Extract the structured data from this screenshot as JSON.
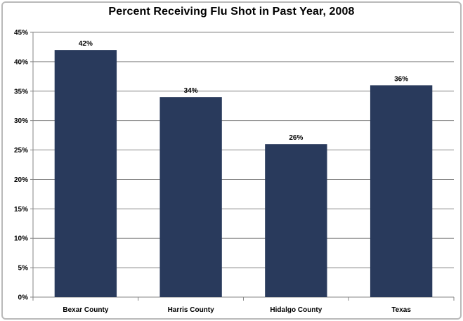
{
  "chart_data": {
    "type": "bar",
    "title": "Percent Receiving Flu Shot in Past Year, 2008",
    "xlabel": "",
    "ylabel": "",
    "categories": [
      "Bexar County",
      "Harris County",
      "Hidalgo County",
      "Texas"
    ],
    "values": [
      42,
      34,
      26,
      36
    ],
    "data_labels": [
      "42%",
      "34%",
      "26%",
      "36%"
    ],
    "ylim": [
      0,
      45
    ],
    "yticks": [
      0,
      5,
      10,
      15,
      20,
      25,
      30,
      35,
      40,
      45
    ],
    "ytick_labels": [
      "0%",
      "5%",
      "10%",
      "15%",
      "20%",
      "25%",
      "30%",
      "35%",
      "40%",
      "45%"
    ],
    "grid": true,
    "legend": "none",
    "bar_color": "#293a5c",
    "grid_color": "#868686"
  }
}
